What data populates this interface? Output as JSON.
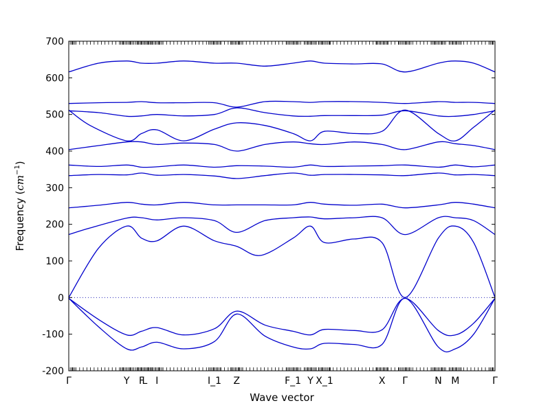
{
  "chart_data": {
    "type": "line",
    "title": "",
    "xlabel": "Wave vector",
    "ylabel": "Frequency (cm⁻¹)",
    "ylabel_main": "Frequency (",
    "ylabel_unit": "cm",
    "ylabel_exp": "−1",
    "ylabel_close": ")",
    "ylim": [
      -200,
      700
    ],
    "yticks": [
      -200,
      -100,
      0,
      100,
      200,
      300,
      400,
      500,
      600,
      700
    ],
    "xlim": [
      0,
      1
    ],
    "high_symmetry_points": [
      {
        "label": "Γ",
        "x": 0.0
      },
      {
        "label": "Y",
        "x": 0.136
      },
      {
        "label": "F",
        "x": 0.171
      },
      {
        "label": "L",
        "x": 0.178
      },
      {
        "label": "I",
        "x": 0.207
      },
      {
        "label": "I_1",
        "x": 0.342
      },
      {
        "label": "Z",
        "x": 0.394
      },
      {
        "label": "F_1",
        "x": 0.526
      },
      {
        "label": "Y",
        "x": 0.567
      },
      {
        "label": "X_1",
        "x": 0.6
      },
      {
        "label": "X",
        "x": 0.735
      },
      {
        "label": "Γ",
        "x": 0.789
      },
      {
        "label": "N",
        "x": 0.867
      },
      {
        "label": "M",
        "x": 0.907
      },
      {
        "label": "Γ",
        "x": 1.0
      }
    ],
    "bands": [
      {
        "x": [
          0,
          0.07,
          0.136,
          0.171,
          0.207,
          0.27,
          0.342,
          0.394,
          0.46,
          0.526,
          0.567,
          0.6,
          0.67,
          0.735,
          0.789,
          0.867,
          0.907,
          0.95,
          1.0
        ],
        "y": [
          -2,
          -80,
          -140,
          -135,
          -122,
          -140,
          -120,
          -45,
          -105,
          -135,
          -140,
          -125,
          -128,
          -128,
          -2,
          -135,
          -140,
          -100,
          -2
        ]
      },
      {
        "x": [
          0,
          0.07,
          0.136,
          0.171,
          0.207,
          0.27,
          0.342,
          0.394,
          0.46,
          0.526,
          0.567,
          0.6,
          0.67,
          0.735,
          0.789,
          0.867,
          0.907,
          0.95,
          1.0
        ],
        "y": [
          -2,
          -60,
          -102,
          -92,
          -82,
          -102,
          -85,
          -37,
          -75,
          -92,
          -102,
          -87,
          -90,
          -88,
          -2,
          -90,
          -102,
          -70,
          -2
        ]
      },
      {
        "x": [
          0,
          0.07,
          0.136,
          0.171,
          0.207,
          0.27,
          0.342,
          0.394,
          0.45,
          0.526,
          0.567,
          0.6,
          0.67,
          0.735,
          0.789,
          0.867,
          0.907,
          0.95,
          1.0
        ],
        "y": [
          0,
          135,
          195,
          162,
          155,
          195,
          155,
          140,
          115,
          162,
          195,
          150,
          160,
          150,
          0,
          162,
          195,
          150,
          0
        ]
      },
      {
        "x": [
          0,
          0.05,
          0.136,
          0.171,
          0.207,
          0.27,
          0.342,
          0.394,
          0.46,
          0.526,
          0.567,
          0.6,
          0.67,
          0.735,
          0.789,
          0.867,
          0.907,
          0.95,
          1.0
        ],
        "y": [
          172,
          190,
          217,
          218,
          212,
          218,
          210,
          178,
          210,
          218,
          220,
          215,
          218,
          218,
          172,
          218,
          218,
          210,
          172
        ]
      },
      {
        "x": [
          0,
          0.07,
          0.136,
          0.171,
          0.207,
          0.27,
          0.342,
          0.394,
          0.46,
          0.526,
          0.567,
          0.6,
          0.67,
          0.735,
          0.789,
          0.867,
          0.907,
          0.95,
          1.0
        ],
        "y": [
          245,
          252,
          260,
          255,
          253,
          260,
          253,
          253,
          253,
          253,
          260,
          255,
          252,
          255,
          245,
          253,
          260,
          255,
          245
        ]
      },
      {
        "x": [
          0,
          0.07,
          0.136,
          0.171,
          0.207,
          0.27,
          0.342,
          0.394,
          0.46,
          0.526,
          0.567,
          0.6,
          0.67,
          0.735,
          0.789,
          0.867,
          0.907,
          0.95,
          1.0
        ],
        "y": [
          333,
          336,
          335,
          340,
          334,
          336,
          332,
          325,
          333,
          340,
          334,
          336,
          336,
          335,
          333,
          340,
          335,
          336,
          333
        ]
      },
      {
        "x": [
          0,
          0.07,
          0.136,
          0.171,
          0.207,
          0.27,
          0.342,
          0.394,
          0.46,
          0.526,
          0.567,
          0.6,
          0.67,
          0.735,
          0.789,
          0.867,
          0.907,
          0.95,
          1.0
        ],
        "y": [
          362,
          358,
          362,
          356,
          357,
          362,
          356,
          360,
          359,
          356,
          362,
          358,
          359,
          360,
          362,
          356,
          362,
          357,
          362
        ]
      },
      {
        "x": [
          0,
          0.07,
          0.136,
          0.171,
          0.207,
          0.27,
          0.342,
          0.394,
          0.46,
          0.526,
          0.567,
          0.6,
          0.67,
          0.735,
          0.789,
          0.867,
          0.907,
          0.95,
          1.0
        ],
        "y": [
          404,
          415,
          425,
          425,
          418,
          422,
          418,
          400,
          418,
          425,
          420,
          418,
          425,
          418,
          404,
          425,
          420,
          415,
          404
        ]
      },
      {
        "x": [
          0,
          0.05,
          0.136,
          0.171,
          0.207,
          0.27,
          0.342,
          0.394,
          0.46,
          0.526,
          0.567,
          0.6,
          0.67,
          0.735,
          0.789,
          0.867,
          0.907,
          0.95,
          1.0
        ],
        "y": [
          512,
          470,
          428,
          448,
          458,
          428,
          460,
          477,
          470,
          448,
          428,
          454,
          448,
          454,
          512,
          448,
          428,
          465,
          512
        ]
      },
      {
        "x": [
          0,
          0.07,
          0.136,
          0.171,
          0.207,
          0.27,
          0.342,
          0.394,
          0.46,
          0.526,
          0.567,
          0.6,
          0.67,
          0.735,
          0.789,
          0.867,
          0.907,
          0.95,
          1.0
        ],
        "y": [
          510,
          505,
          495,
          496,
          500,
          496,
          500,
          518,
          505,
          496,
          495,
          497,
          497,
          498,
          510,
          496,
          495,
          500,
          510
        ]
      },
      {
        "x": [
          0,
          0.07,
          0.136,
          0.171,
          0.207,
          0.27,
          0.342,
          0.394,
          0.46,
          0.526,
          0.567,
          0.6,
          0.67,
          0.735,
          0.789,
          0.867,
          0.907,
          0.95,
          1.0
        ],
        "y": [
          530,
          532,
          533,
          535,
          532,
          532,
          532,
          520,
          535,
          535,
          533,
          535,
          535,
          533,
          530,
          535,
          533,
          533,
          530
        ]
      },
      {
        "x": [
          0,
          0.07,
          0.136,
          0.171,
          0.207,
          0.27,
          0.342,
          0.394,
          0.46,
          0.526,
          0.567,
          0.6,
          0.67,
          0.735,
          0.789,
          0.867,
          0.907,
          0.95,
          1.0
        ],
        "y": [
          616,
          640,
          646,
          640,
          640,
          646,
          640,
          640,
          632,
          640,
          646,
          640,
          638,
          638,
          616,
          640,
          646,
          640,
          616
        ]
      }
    ]
  }
}
